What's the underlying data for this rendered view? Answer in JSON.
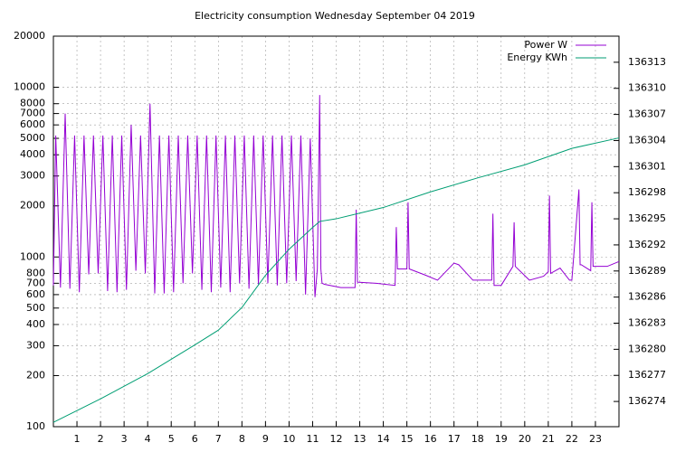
{
  "chart_data": {
    "type": "line",
    "title": "Electricity consumption Wednesday September 04 2019",
    "log_y": true,
    "grid": true,
    "legend": "top-right",
    "xlim": [
      0,
      24
    ],
    "xticks": [
      1,
      2,
      3,
      4,
      5,
      6,
      7,
      8,
      9,
      10,
      11,
      12,
      13,
      14,
      15,
      16,
      17,
      18,
      19,
      20,
      21,
      22,
      23
    ],
    "ylim": [
      100,
      20000
    ],
    "yticks": [
      100,
      200,
      300,
      400,
      500,
      600,
      700,
      800,
      1000,
      2000,
      3000,
      4000,
      5000,
      6000,
      7000,
      8000,
      10000,
      20000
    ],
    "y2lim": [
      136271.1,
      136316
    ],
    "y2ticks": [
      136274,
      136277,
      136280,
      136283,
      136286,
      136289,
      136292,
      136295,
      136298,
      136301,
      136304,
      136307,
      136310,
      136313
    ],
    "series": [
      {
        "name": "Power W",
        "color": "#9400d3",
        "x": [
          0,
          0.1,
          0.3,
          0.5,
          0.7,
          0.9,
          1.1,
          1.3,
          1.5,
          1.7,
          1.9,
          2.1,
          2.3,
          2.5,
          2.7,
          2.9,
          3.1,
          3.3,
          3.5,
          3.7,
          3.9,
          4.1,
          4.3,
          4.5,
          4.7,
          4.9,
          5.1,
          5.3,
          5.5,
          5.7,
          5.9,
          6.1,
          6.3,
          6.5,
          6.7,
          6.9,
          7.1,
          7.3,
          7.5,
          7.7,
          7.9,
          8.1,
          8.3,
          8.5,
          8.7,
          8.9,
          9.1,
          9.3,
          9.5,
          9.7,
          9.9,
          10.1,
          10.3,
          10.5,
          10.7,
          10.9,
          11.1,
          11.2,
          11.3,
          11.35,
          11.4,
          11.5,
          12.2,
          12.8,
          12.85,
          12.9,
          13.7,
          14.5,
          14.55,
          14.6,
          15.0,
          15.05,
          15.1,
          15.8,
          16.3,
          17.0,
          17.2,
          17.8,
          18.0,
          18.6,
          18.65,
          18.7,
          19.0,
          19.5,
          19.55,
          19.6,
          20.2,
          20.8,
          21.0,
          21.05,
          21.1,
          21.5,
          21.9,
          22.0,
          22.3,
          22.35,
          22.4,
          22.8,
          22.85,
          22.9,
          23.2,
          23.5,
          24.0
        ],
        "values": [
          680,
          5200,
          660,
          7000,
          650,
          5200,
          620,
          5200,
          790,
          5200,
          800,
          5200,
          630,
          5200,
          620,
          5200,
          640,
          6000,
          830,
          5200,
          800,
          8000,
          610,
          5200,
          610,
          5200,
          620,
          5200,
          700,
          5200,
          800,
          5200,
          640,
          5200,
          620,
          5200,
          660,
          5200,
          620,
          5200,
          700,
          5200,
          650,
          5200,
          690,
          5200,
          700,
          5200,
          680,
          5200,
          700,
          5200,
          720,
          5200,
          600,
          5000,
          580,
          850,
          9000,
          850,
          700,
          690,
          660,
          660,
          1900,
          710,
          700,
          680,
          1500,
          850,
          850,
          2100,
          850,
          780,
          730,
          920,
          900,
          730,
          730,
          730,
          1800,
          680,
          680,
          880,
          1600,
          880,
          730,
          770,
          820,
          2300,
          800,
          860,
          730,
          730,
          2500,
          900,
          900,
          830,
          2100,
          880,
          880,
          880,
          940
        ]
      },
      {
        "name": "Energy KWh",
        "color": "#009e73",
        "axis": "y2",
        "x": [
          0,
          2,
          4,
          6,
          7,
          8,
          9,
          10,
          11,
          11.3,
          12,
          14,
          16,
          18,
          20,
          22,
          24
        ],
        "values": [
          136271.6,
          136274.3,
          136277.2,
          136280.5,
          136282.2,
          136284.8,
          136288.5,
          136291.5,
          136294,
          136294.7,
          136295,
          136296.3,
          136298.1,
          136299.7,
          136301.2,
          136303.1,
          136304.3
        ]
      }
    ]
  }
}
